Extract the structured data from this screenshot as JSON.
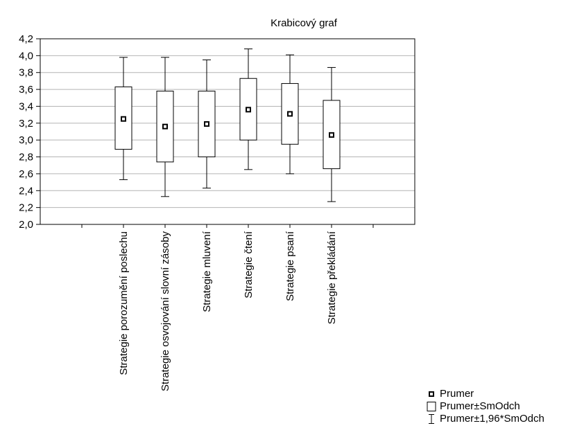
{
  "chart_data": {
    "type": "box",
    "title": "Krabicový graf",
    "xlabel": "",
    "ylabel": "",
    "ylim": [
      2.0,
      4.2
    ],
    "yticks": [
      "2,0",
      "2,2",
      "2,4",
      "2,6",
      "2,8",
      "3,0",
      "3,2",
      "3,4",
      "3,6",
      "3,8",
      "4,0",
      "4,2"
    ],
    "grid": "horizontal",
    "categories": [
      "Strategie porozumění poslechu",
      "Strategie osvojování slovní zásoby",
      "Strategie mluvení",
      "Strategie čtení",
      "Strategie psaní",
      "Strategie překládání"
    ],
    "series": [
      {
        "name": "Prumer",
        "values": [
          3.25,
          3.16,
          3.19,
          3.36,
          3.31,
          3.06
        ]
      },
      {
        "name": "Prumer±SmOdch",
        "low": [
          2.89,
          2.74,
          2.8,
          3.0,
          2.95,
          2.66
        ],
        "high": [
          3.63,
          3.58,
          3.58,
          3.73,
          3.67,
          3.47
        ]
      },
      {
        "name": "Prumer±1,96*SmOdch",
        "low": [
          2.53,
          2.33,
          2.43,
          2.65,
          2.6,
          2.27
        ],
        "high": [
          3.98,
          3.98,
          3.95,
          4.08,
          4.01,
          3.86
        ]
      }
    ],
    "legend_position": "bottom-right"
  }
}
